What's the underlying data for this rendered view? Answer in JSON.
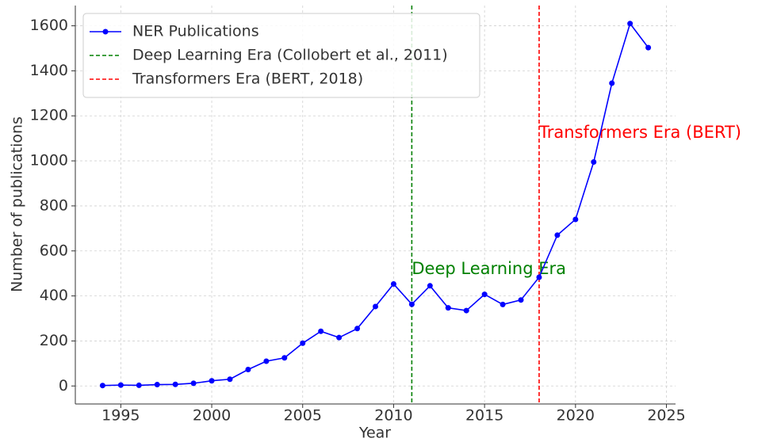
{
  "chart_data": {
    "type": "line",
    "x_label": "Year",
    "y_label": "Number of publications",
    "x": [
      1994,
      1995,
      1996,
      1997,
      1998,
      1999,
      2000,
      2001,
      2002,
      2003,
      2004,
      2005,
      2006,
      2007,
      2008,
      2009,
      2010,
      2011,
      2012,
      2013,
      2014,
      2015,
      2016,
      2017,
      2018,
      2019,
      2020,
      2021,
      2022,
      2023,
      2024
    ],
    "series": [
      {
        "name": "NER Publications",
        "color": "#0000ff",
        "values": [
          2,
          4,
          3,
          6,
          7,
          12,
          23,
          30,
          73,
          110,
          125,
          190,
          243,
          215,
          255,
          353,
          453,
          363,
          445,
          347,
          335,
          407,
          362,
          382,
          483,
          670,
          740,
          995,
          1345,
          1610,
          1503
        ]
      }
    ],
    "vlines": [
      {
        "x": 2011,
        "name": "Deep Learning Era (Collobert et al., 2011)",
        "color": "#008000",
        "annotation": "Deep Learning Era"
      },
      {
        "x": 2018,
        "name": "Transformers Era (BERT, 2018)",
        "color": "#ff0000",
        "annotation": "Transformers Era (BERT)"
      }
    ],
    "xlim": [
      1992.5,
      2025.5
    ],
    "ylim": [
      -80,
      1690
    ],
    "xticks": [
      1995,
      2000,
      2005,
      2010,
      2015,
      2020,
      2025
    ],
    "yticks": [
      0,
      200,
      400,
      600,
      800,
      1000,
      1200,
      1400,
      1600
    ],
    "grid": true,
    "legend": "upper-left"
  }
}
